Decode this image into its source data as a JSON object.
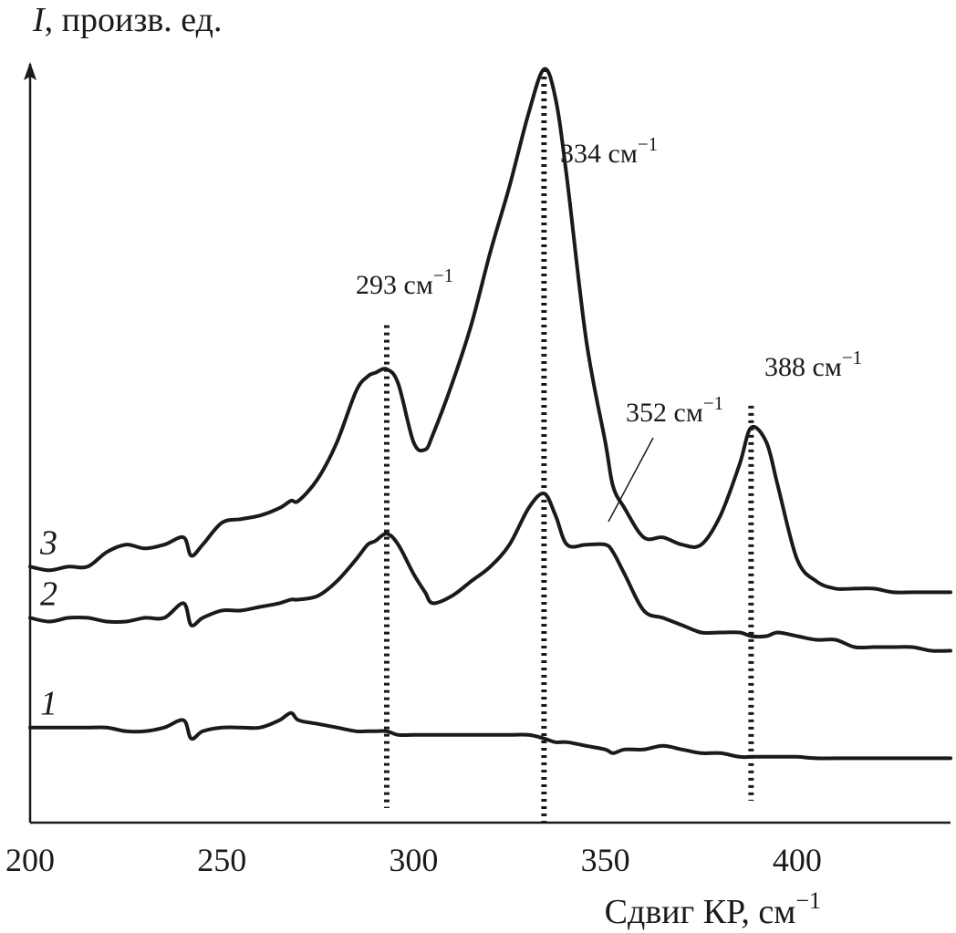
{
  "chart_data": {
    "type": "line",
    "title": "",
    "xlabel": "Сдвиг КР, см",
    "xlabel_sup": "−1",
    "ylabel": "I",
    "ylabel_rest": ", произв. ед.",
    "xlim": [
      200,
      440
    ],
    "ylim": [
      0,
      100
    ],
    "grid": false,
    "xticks": [
      200,
      250,
      300,
      350,
      400
    ],
    "x": [
      200,
      205,
      210,
      215,
      220,
      225,
      230,
      235,
      240,
      242,
      245,
      250,
      255,
      260,
      265,
      268,
      270,
      275,
      280,
      285,
      288,
      290,
      293,
      296,
      300,
      303,
      305,
      310,
      315,
      320,
      325,
      330,
      334,
      337,
      340,
      345,
      350,
      352,
      355,
      360,
      365,
      370,
      375,
      380,
      385,
      388,
      392,
      395,
      400,
      405,
      410,
      415,
      420,
      425,
      430,
      435,
      440
    ],
    "series": [
      {
        "name": "1",
        "values": [
          13,
          13,
          13,
          13,
          13,
          12.5,
          12.5,
          13,
          14,
          11.5,
          12.5,
          13,
          13,
          13,
          14,
          15,
          14,
          13.5,
          13,
          12.5,
          12.5,
          12.5,
          12.5,
          12,
          12,
          12,
          12,
          12,
          12,
          12,
          12,
          12,
          11.5,
          11,
          11,
          10.5,
          10,
          9.5,
          10,
          10,
          10.5,
          10,
          9.5,
          9.5,
          9,
          9,
          9,
          9,
          9,
          8.8,
          8.8,
          8.8,
          8.8,
          8.8,
          8.8,
          8.8,
          8.8
        ]
      },
      {
        "name": "2",
        "values": [
          28,
          27.5,
          28,
          28,
          27.5,
          27.5,
          28,
          28,
          30,
          27,
          28,
          29,
          29,
          29.5,
          30,
          30.5,
          30.5,
          31,
          33,
          36,
          38,
          38.5,
          39.5,
          38,
          34,
          31.5,
          30,
          31,
          33,
          35,
          38,
          43,
          45,
          42,
          38,
          38,
          38,
          37,
          34,
          29,
          28,
          27,
          26,
          26,
          26,
          25.5,
          25.5,
          26,
          25.5,
          25,
          25,
          24,
          24,
          24,
          24,
          23.5,
          23.5
        ]
      },
      {
        "name": "3",
        "values": [
          35,
          34.5,
          35,
          35,
          37,
          38,
          37.5,
          38,
          39,
          36.5,
          38,
          41,
          41.5,
          42,
          43,
          44,
          44,
          47,
          52,
          59,
          61,
          61.5,
          62,
          60,
          52,
          51,
          53,
          60,
          68,
          78,
          87,
          97,
          103,
          99,
          88,
          66,
          52,
          46,
          43,
          39,
          39,
          38,
          38,
          42,
          49,
          54,
          52,
          46,
          36,
          33,
          32,
          32,
          32,
          31.5,
          31.5,
          31.5,
          31.5
        ]
      }
    ],
    "annotations": [
      {
        "label": "293 см",
        "sup": "−1",
        "x": 293,
        "y_top": 68,
        "y_bottom": 2
      },
      {
        "label": "334 см",
        "sup": "−1",
        "x": 334,
        "y_top": 103,
        "y_bottom": 0
      },
      {
        "label": "352 см",
        "sup": "−1",
        "x": 352,
        "y_top": null,
        "y_bottom": null
      },
      {
        "label": "388 см",
        "sup": "−1",
        "x": 388,
        "y_top": 57,
        "y_bottom": 3
      }
    ]
  }
}
